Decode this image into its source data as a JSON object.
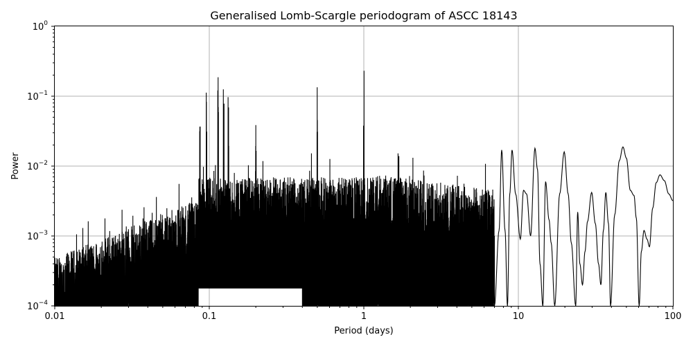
{
  "chart_data": {
    "type": "line",
    "title": "Generalised Lomb-Scargle periodogram of ASCC 18143",
    "xlabel": "Period (days)",
    "ylabel": "Power",
    "xscale": "log",
    "yscale": "log",
    "xlim": [
      0.01,
      100
    ],
    "ylim": [
      0.0001,
      1
    ],
    "grid": true,
    "x_ticks": [
      {
        "value": 0.01,
        "label": "0.01"
      },
      {
        "value": 0.1,
        "label": "0.1"
      },
      {
        "value": 1,
        "label": "1"
      },
      {
        "value": 10,
        "label": "10"
      },
      {
        "value": 100,
        "label": "100"
      }
    ],
    "y_ticks": [
      {
        "value": 0.0001,
        "base": "10",
        "exp": "−4"
      },
      {
        "value": 0.001,
        "base": "10",
        "exp": "−3"
      },
      {
        "value": 0.01,
        "base": "10",
        "exp": "−2"
      },
      {
        "value": 0.1,
        "base": "10",
        "exp": "−1"
      },
      {
        "value": 1,
        "base": "10",
        "exp": "0"
      }
    ],
    "peaks": [
      {
        "period": 0.114,
        "power": 0.12
      },
      {
        "period": 0.096,
        "power": 0.066
      },
      {
        "period": 0.124,
        "power": 0.072
      },
      {
        "period": 0.5,
        "power": 0.088
      },
      {
        "period": 1.0,
        "power": 0.105
      },
      {
        "period": 0.087,
        "power": 0.024
      },
      {
        "period": 0.133,
        "power": 0.05
      },
      {
        "period": 0.2,
        "power": 0.02
      }
    ],
    "long_period_series": [
      [
        7.0,
        0.0001
      ],
      [
        7.5,
        0.0012
      ],
      [
        7.8,
        0.017
      ],
      [
        8.2,
        0.0012
      ],
      [
        8.5,
        0.0001
      ],
      [
        8.8,
        0.004
      ],
      [
        9.1,
        0.017
      ],
      [
        9.6,
        0.004
      ],
      [
        10.3,
        0.0009
      ],
      [
        10.8,
        0.0045
      ],
      [
        11.3,
        0.004
      ],
      [
        12.0,
        0.001
      ],
      [
        12.8,
        0.018
      ],
      [
        13.3,
        0.009
      ],
      [
        13.8,
        0.0004
      ],
      [
        14.4,
        0.0001
      ],
      [
        15.0,
        0.006
      ],
      [
        15.8,
        0.0017
      ],
      [
        16.3,
        0.0008
      ],
      [
        17.2,
        0.0001
      ],
      [
        18.5,
        0.004
      ],
      [
        19.8,
        0.016
      ],
      [
        21.0,
        0.004
      ],
      [
        22.0,
        0.0008
      ],
      [
        23.5,
        0.0001
      ],
      [
        24.2,
        0.0022
      ],
      [
        25.0,
        0.0004
      ],
      [
        26.0,
        0.0002
      ],
      [
        27.0,
        0.0006
      ],
      [
        28.0,
        0.0016
      ],
      [
        29.8,
        0.0042
      ],
      [
        31.5,
        0.0015
      ],
      [
        33.0,
        0.0004
      ],
      [
        34.2,
        0.0002
      ],
      [
        35.5,
        0.0012
      ],
      [
        36.8,
        0.0042
      ],
      [
        38.3,
        0.0015
      ],
      [
        39.5,
        0.0001
      ],
      [
        42.0,
        0.002
      ],
      [
        45.0,
        0.012
      ],
      [
        47.5,
        0.0188
      ],
      [
        50.0,
        0.013
      ],
      [
        53.0,
        0.0045
      ],
      [
        56.0,
        0.0038
      ],
      [
        58.0,
        0.0018
      ],
      [
        60.5,
        0.0001
      ],
      [
        62.5,
        0.0006
      ],
      [
        65.0,
        0.0012
      ],
      [
        68.0,
        0.0009
      ],
      [
        70.5,
        0.0007
      ],
      [
        74.0,
        0.0025
      ],
      [
        78.0,
        0.0058
      ],
      [
        82.5,
        0.0075
      ],
      [
        88.0,
        0.0062
      ],
      [
        94.0,
        0.004
      ],
      [
        100.0,
        0.0032
      ]
    ]
  }
}
